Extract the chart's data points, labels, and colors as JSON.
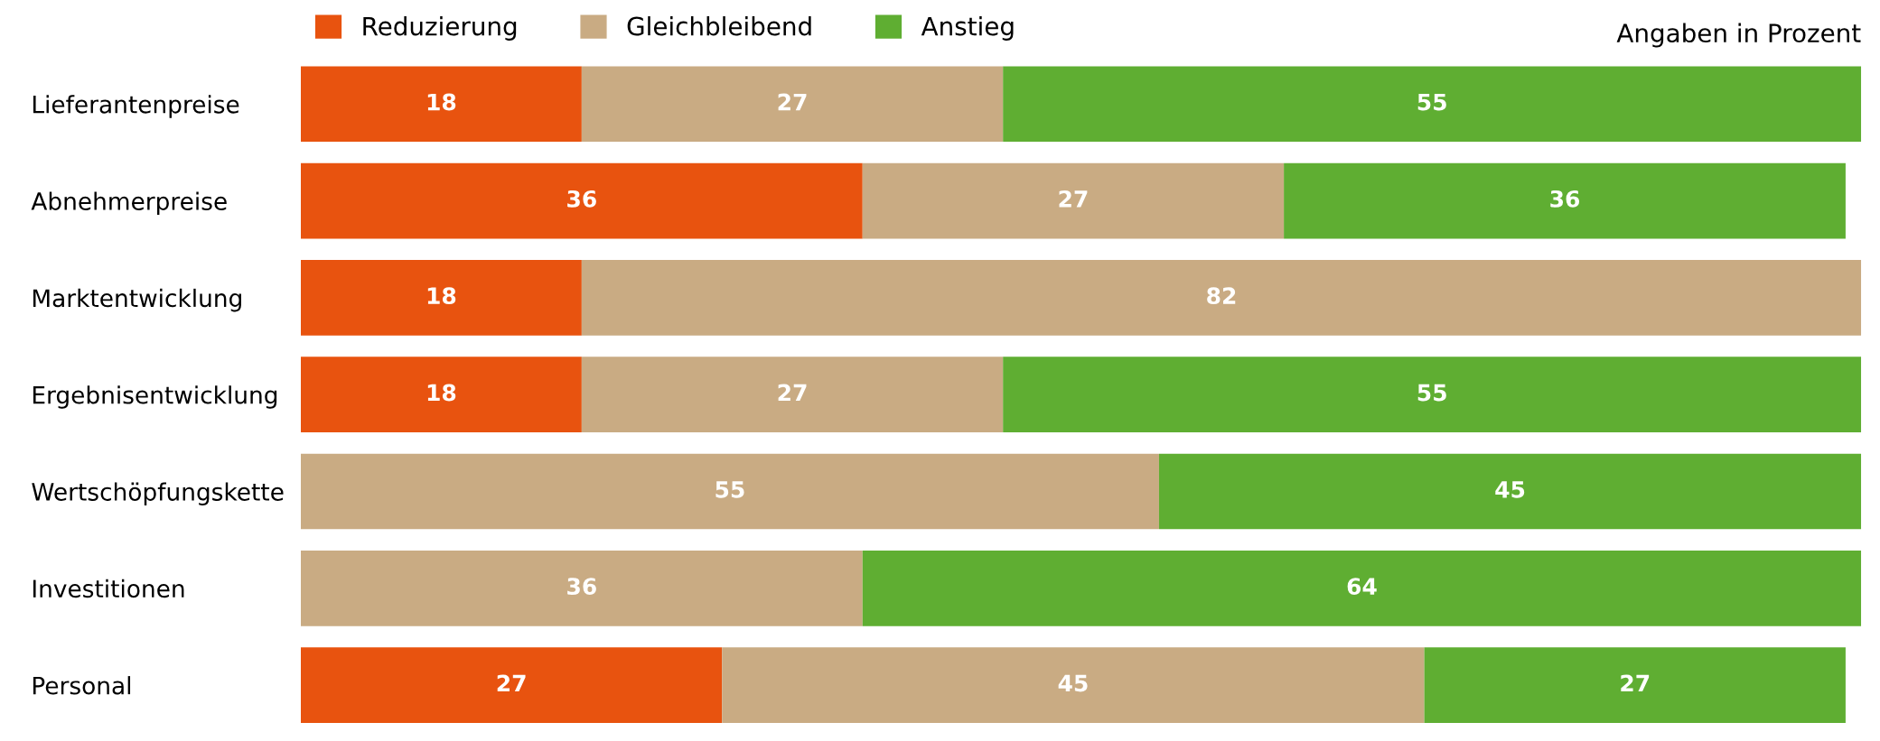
{
  "chart_data": {
    "type": "bar",
    "orientation": "horizontal",
    "stacked": true,
    "data_labels": true,
    "legend": "top left",
    "tick_labels": "y",
    "annotations": [
      "Angaben in Prozent"
    ],
    "categories": [
      "Lieferantenpreise",
      "Abnehmerpreise",
      "Marktentwicklung",
      "Ergebnisentwicklung",
      "Wertschöpfungskette",
      "Investitionen",
      "Personal"
    ],
    "series": [
      {
        "name": "Reduzierung",
        "color": "#e8530f",
        "values": [
          18,
          36,
          18,
          18,
          null,
          null,
          27
        ]
      },
      {
        "name": "Gleichbleibend",
        "color": "#c9ab83",
        "values": [
          27,
          27,
          82,
          27,
          55,
          36,
          45
        ]
      },
      {
        "name": "Anstieg",
        "color": "#5fae32",
        "values": [
          55,
          36,
          null,
          55,
          45,
          64,
          27
        ]
      }
    ]
  }
}
